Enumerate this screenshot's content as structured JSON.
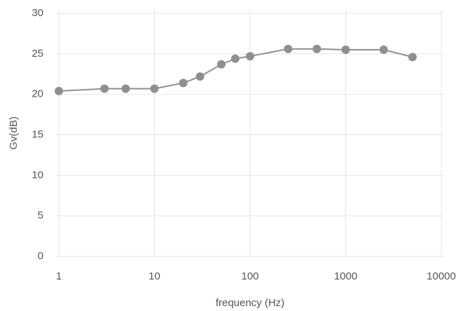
{
  "chart_data": {
    "type": "line",
    "x_label": "frequency (Hz)",
    "y_label": "Gv(dB)",
    "xscale": "log",
    "xlim": [
      1,
      10000
    ],
    "xticks": [
      1,
      10,
      100,
      1000,
      10000
    ],
    "ylim": [
      0,
      30
    ],
    "yticks": [
      0,
      5,
      10,
      15,
      20,
      25,
      30
    ],
    "grid": true,
    "x": [
      1,
      3,
      5,
      10,
      20,
      30,
      50,
      70,
      100,
      250,
      500,
      1000,
      2500,
      5000
    ],
    "series": [
      {
        "color": "#8f8f8f",
        "values": [
          20.4,
          20.7,
          20.7,
          20.7,
          21.4,
          22.2,
          23.7,
          24.4,
          24.7,
          25.6,
          25.6,
          25.5,
          25.5,
          24.6
        ]
      }
    ]
  }
}
